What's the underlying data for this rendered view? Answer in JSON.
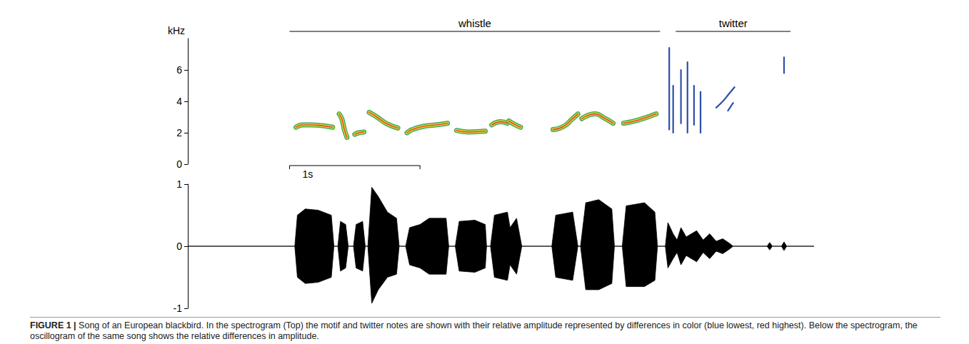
{
  "chart_data": [
    {
      "type": "spectrogram",
      "ylabel": "kHz",
      "xlim": [
        0,
        4.8
      ],
      "ylim": [
        0,
        8
      ],
      "yticks": [
        0,
        2,
        4,
        6
      ],
      "tick_labels": "y",
      "notes": [
        {
          "color": "#3fae5a",
          "line_style": "band",
          "x": [
            0.83,
            0.88,
            0.95,
            1.03,
            1.11
          ],
          "values": [
            2.35,
            2.5,
            2.5,
            2.45,
            2.35
          ]
        },
        {
          "color": "#3fae5a",
          "line_style": "band",
          "x": [
            1.16,
            1.18,
            1.2,
            1.22
          ],
          "values": [
            3.2,
            2.9,
            2.2,
            1.7
          ]
        },
        {
          "color": "#3fae5a",
          "line_style": "band",
          "x": [
            1.28,
            1.31,
            1.35
          ],
          "values": [
            1.9,
            2.0,
            2.05
          ]
        },
        {
          "color": "#3fae5a",
          "line_style": "band",
          "x": [
            1.39,
            1.45,
            1.52,
            1.61
          ],
          "values": [
            3.3,
            3.0,
            2.6,
            2.3
          ]
        },
        {
          "color": "#3fae5a",
          "line_style": "band",
          "x": [
            1.68,
            1.72,
            1.8,
            1.9,
            1.99
          ],
          "values": [
            2.0,
            2.2,
            2.4,
            2.5,
            2.6
          ]
        },
        {
          "color": "#3fae5a",
          "line_style": "band",
          "x": [
            2.06,
            2.15,
            2.28
          ],
          "values": [
            2.15,
            2.05,
            2.1
          ]
        },
        {
          "color": "#3fae5a",
          "line_style": "band",
          "x": [
            2.33,
            2.4,
            2.45
          ],
          "values": [
            2.5,
            2.7,
            2.6
          ]
        },
        {
          "color": "#3fae5a",
          "line_style": "band",
          "x": [
            2.46,
            2.5,
            2.55
          ],
          "values": [
            2.75,
            2.55,
            2.35
          ]
        },
        {
          "color": "#3fae5a",
          "line_style": "band",
          "x": [
            2.8,
            2.88,
            2.95,
            2.99
          ],
          "values": [
            2.2,
            2.4,
            2.9,
            3.2
          ]
        },
        {
          "color": "#3fae5a",
          "line_style": "band",
          "x": [
            3.02,
            3.12,
            3.2,
            3.26
          ],
          "values": [
            2.9,
            3.2,
            2.9,
            2.6
          ]
        },
        {
          "color": "#3fae5a",
          "line_style": "band",
          "x": [
            3.34,
            3.45,
            3.59
          ],
          "values": [
            2.6,
            2.8,
            3.2
          ]
        },
        {
          "color": "#2b4fa8",
          "line_style": "solid",
          "x": [
            3.69,
            3.69
          ],
          "values": [
            2.2,
            7.4
          ]
        },
        {
          "color": "#2b4fa8",
          "line_style": "solid",
          "x": [
            3.72,
            3.72
          ],
          "values": [
            2.0,
            5.0
          ]
        },
        {
          "color": "#2b4fa8",
          "line_style": "solid",
          "x": [
            3.78,
            3.78
          ],
          "values": [
            2.6,
            6.0
          ]
        },
        {
          "color": "#2b4fa8",
          "line_style": "solid",
          "x": [
            3.83,
            3.83
          ],
          "values": [
            2.0,
            6.5
          ]
        },
        {
          "color": "#2b4fa8",
          "line_style": "solid",
          "x": [
            3.88,
            3.88
          ],
          "values": [
            2.5,
            5.0
          ]
        },
        {
          "color": "#2b4fa8",
          "line_style": "solid",
          "x": [
            3.93,
            3.93
          ],
          "values": [
            2.0,
            4.6
          ]
        },
        {
          "color": "#2b4fa8",
          "line_style": "solid",
          "x": [
            4.05,
            4.1,
            4.15,
            4.19
          ],
          "values": [
            3.6,
            4.0,
            4.5,
            4.9
          ]
        },
        {
          "color": "#2b4fa8",
          "line_style": "solid",
          "x": [
            4.14,
            4.18
          ],
          "values": [
            3.4,
            3.9
          ]
        },
        {
          "color": "#2b4fa8",
          "line_style": "solid",
          "x": [
            4.57,
            4.57
          ],
          "values": [
            5.8,
            6.8
          ]
        }
      ],
      "annotations": [
        {
          "text": "whistle",
          "start": 0.78,
          "end": 3.62
        },
        {
          "text": "twitter",
          "start": 3.74,
          "end": 4.62
        }
      ],
      "scale_bar": {
        "text": "1s",
        "start": 0.78,
        "end": 1.78
      }
    },
    {
      "type": "line",
      "xlim": [
        0,
        4.8
      ],
      "ylim": [
        -1,
        1
      ],
      "yticks": [
        -1,
        0,
        1
      ],
      "tick_labels": "y",
      "color": "#000000",
      "x": [
        0,
        0.82,
        0.84,
        0.9,
        1.0,
        1.1,
        1.12,
        1.15,
        1.17,
        1.21,
        1.23,
        1.27,
        1.29,
        1.34,
        1.36,
        1.38,
        1.41,
        1.46,
        1.53,
        1.6,
        1.62,
        1.67,
        1.7,
        1.78,
        1.85,
        1.98,
        2.0,
        2.05,
        2.08,
        2.2,
        2.28,
        2.29,
        2.32,
        2.35,
        2.45,
        2.47,
        2.52,
        2.56,
        2.79,
        2.82,
        2.95,
        2.99,
        3.01,
        3.05,
        3.15,
        3.25,
        3.27,
        3.33,
        3.36,
        3.5,
        3.58,
        3.6,
        3.66,
        3.68,
        3.72,
        3.75,
        3.78,
        3.82,
        3.86,
        3.9,
        3.95,
        4.0,
        4.05,
        4.1,
        4.15,
        4.18,
        4.44,
        4.46,
        4.48,
        4.55,
        4.57,
        4.59,
        4.8
      ],
      "upper": [
        0,
        0,
        0.5,
        0.6,
        0.58,
        0.5,
        0,
        0,
        0.4,
        0.35,
        0,
        0,
        0.35,
        0.4,
        0,
        0,
        0.95,
        0.8,
        0.55,
        0.45,
        0,
        0,
        0.3,
        0.35,
        0.45,
        0.45,
        0,
        0,
        0.4,
        0.42,
        0.35,
        0,
        0,
        0.5,
        0.55,
        0.3,
        0.45,
        0,
        0,
        0.5,
        0.55,
        0,
        0,
        0.7,
        0.75,
        0.6,
        0,
        0,
        0.65,
        0.7,
        0.55,
        0,
        0,
        0.38,
        0.2,
        0.1,
        0.3,
        0.15,
        0.2,
        0.25,
        0.1,
        0.2,
        0.08,
        0.12,
        0.05,
        0,
        0,
        0.06,
        0,
        0,
        0.07,
        0,
        0
      ],
      "lower": [
        0,
        0,
        -0.5,
        -0.6,
        -0.58,
        -0.5,
        0,
        0,
        -0.4,
        -0.35,
        0,
        0,
        -0.35,
        -0.4,
        0,
        0,
        -0.92,
        -0.7,
        -0.5,
        -0.45,
        0,
        0,
        -0.3,
        -0.35,
        -0.45,
        -0.45,
        0,
        0,
        -0.4,
        -0.42,
        -0.35,
        0,
        0,
        -0.5,
        -0.55,
        -0.3,
        -0.45,
        0,
        0,
        -0.5,
        -0.55,
        0,
        0,
        -0.7,
        -0.7,
        -0.6,
        0,
        0,
        -0.65,
        -0.65,
        -0.55,
        0,
        0,
        -0.35,
        -0.2,
        -0.1,
        -0.3,
        -0.15,
        -0.2,
        -0.25,
        -0.1,
        -0.2,
        -0.08,
        -0.12,
        -0.05,
        0,
        0,
        -0.06,
        0,
        0,
        -0.07,
        0,
        0
      ]
    }
  ],
  "caption": {
    "label": "FIGURE 1 |",
    "text": "Song of an European blackbird. In the spectrogram (Top) the motif and twitter notes are shown with their relative amplitude represented by differences in color (blue lowest, red highest). Below the spectrogram, the oscillogram of the same song shows the relative differences in amplitude."
  }
}
